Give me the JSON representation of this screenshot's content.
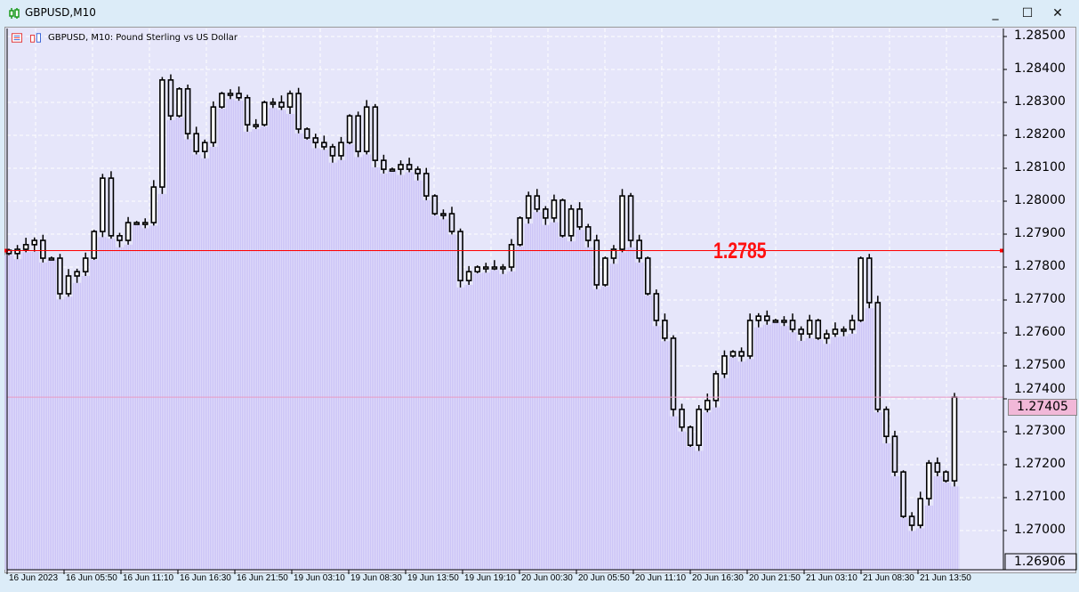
{
  "window": {
    "title": "GBPUSD,M10",
    "minimize_icon": "minimize-icon",
    "maximize_icon": "maximize-icon",
    "close_icon": "close-icon"
  },
  "chart_header": {
    "label": "GBPUSD, M10:  Pound Sterling vs US Dollar",
    "icons": [
      "trade-panel-icon",
      "chart-shift-icon"
    ]
  },
  "colors": {
    "background": "#e6e6fa",
    "candle_outline": "#000000",
    "fill_below": "#cbc4f6",
    "level_line": "#ff0000",
    "bid_line": "#e89ac4",
    "grid": "#ffffff"
  },
  "chart_data": {
    "type": "candlestick",
    "symbol": "GBPUSD",
    "timeframe": "M10",
    "ylim": [
      1.26906,
      1.2852
    ],
    "grid": true,
    "y_ticks": [
      "1.28500",
      "1.28400",
      "1.28300",
      "1.28200",
      "1.28100",
      "1.28000",
      "1.27900",
      "1.27800",
      "1.27700",
      "1.27600",
      "1.27500",
      "1.27400",
      "1.27300",
      "1.27200",
      "1.27100",
      "1.27000"
    ],
    "y_bottom_label": "1.26906",
    "x_ticks": [
      "16 Jun 2023",
      "16 Jun 05:50",
      "16 Jun 11:10",
      "16 Jun 16:30",
      "16 Jun 21:50",
      "19 Jun 03:10",
      "19 Jun 08:30",
      "19 Jun 13:50",
      "19 Jun 19:10",
      "20 Jun 00:30",
      "20 Jun 05:50",
      "20 Jun 11:10",
      "20 Jun 16:30",
      "20 Jun 21:50",
      "21 Jun 03:10",
      "21 Jun 08:30",
      "21 Jun 13:50"
    ],
    "closes": [
      1.27841,
      1.27854,
      1.27868,
      1.27881,
      1.27827,
      1.27827,
      1.27719,
      1.27773,
      1.27786,
      1.27827,
      1.27908,
      1.2807,
      1.27895,
      1.27881,
      1.27935,
      1.27935,
      1.27935,
      1.28043,
      1.28368,
      1.28259,
      1.28341,
      1.28205,
      1.28151,
      1.28178,
      1.28286,
      1.28327,
      1.28327,
      1.28314,
      1.28232,
      1.28232,
      1.283,
      1.283,
      1.28286,
      1.28327,
      1.28219,
      1.28192,
      1.28178,
      1.28165,
      1.28138,
      1.28178,
      1.28259,
      1.28151,
      1.28286,
      1.28124,
      1.28097,
      1.28097,
      1.28111,
      1.28097,
      1.28084,
      1.28016,
      1.27962,
      1.27962,
      1.27908,
      1.27759,
      1.27786,
      1.278,
      1.278,
      1.278,
      1.278,
      1.27868,
      1.27949,
      1.28016,
      1.27976,
      1.27949,
      1.28003,
      1.27895,
      1.27976,
      1.27922,
      1.27881,
      1.27746,
      1.27827,
      1.27854,
      1.28016,
      1.27881,
      1.27827,
      1.27719,
      1.27638,
      1.27584,
      1.27368,
      1.27314,
      1.27259,
      1.27368,
      1.27395,
      1.27476,
      1.2753,
      1.27543,
      1.2753,
      1.27638,
      1.27651,
      1.27638,
      1.27638,
      1.27638,
      1.27611,
      1.27597,
      1.27638,
      1.27584,
      1.27597,
      1.27611,
      1.27611,
      1.27638,
      1.27827,
      1.27692,
      1.27368,
      1.27286,
      1.27178,
      1.27043,
      1.27016,
      1.27097,
      1.27205,
      1.27178,
      1.27151,
      1.27405
    ],
    "horizontal_level": {
      "value": 1.2785,
      "label": "1.2785"
    },
    "bid": {
      "value": 1.27405,
      "label": "1.27405"
    }
  }
}
